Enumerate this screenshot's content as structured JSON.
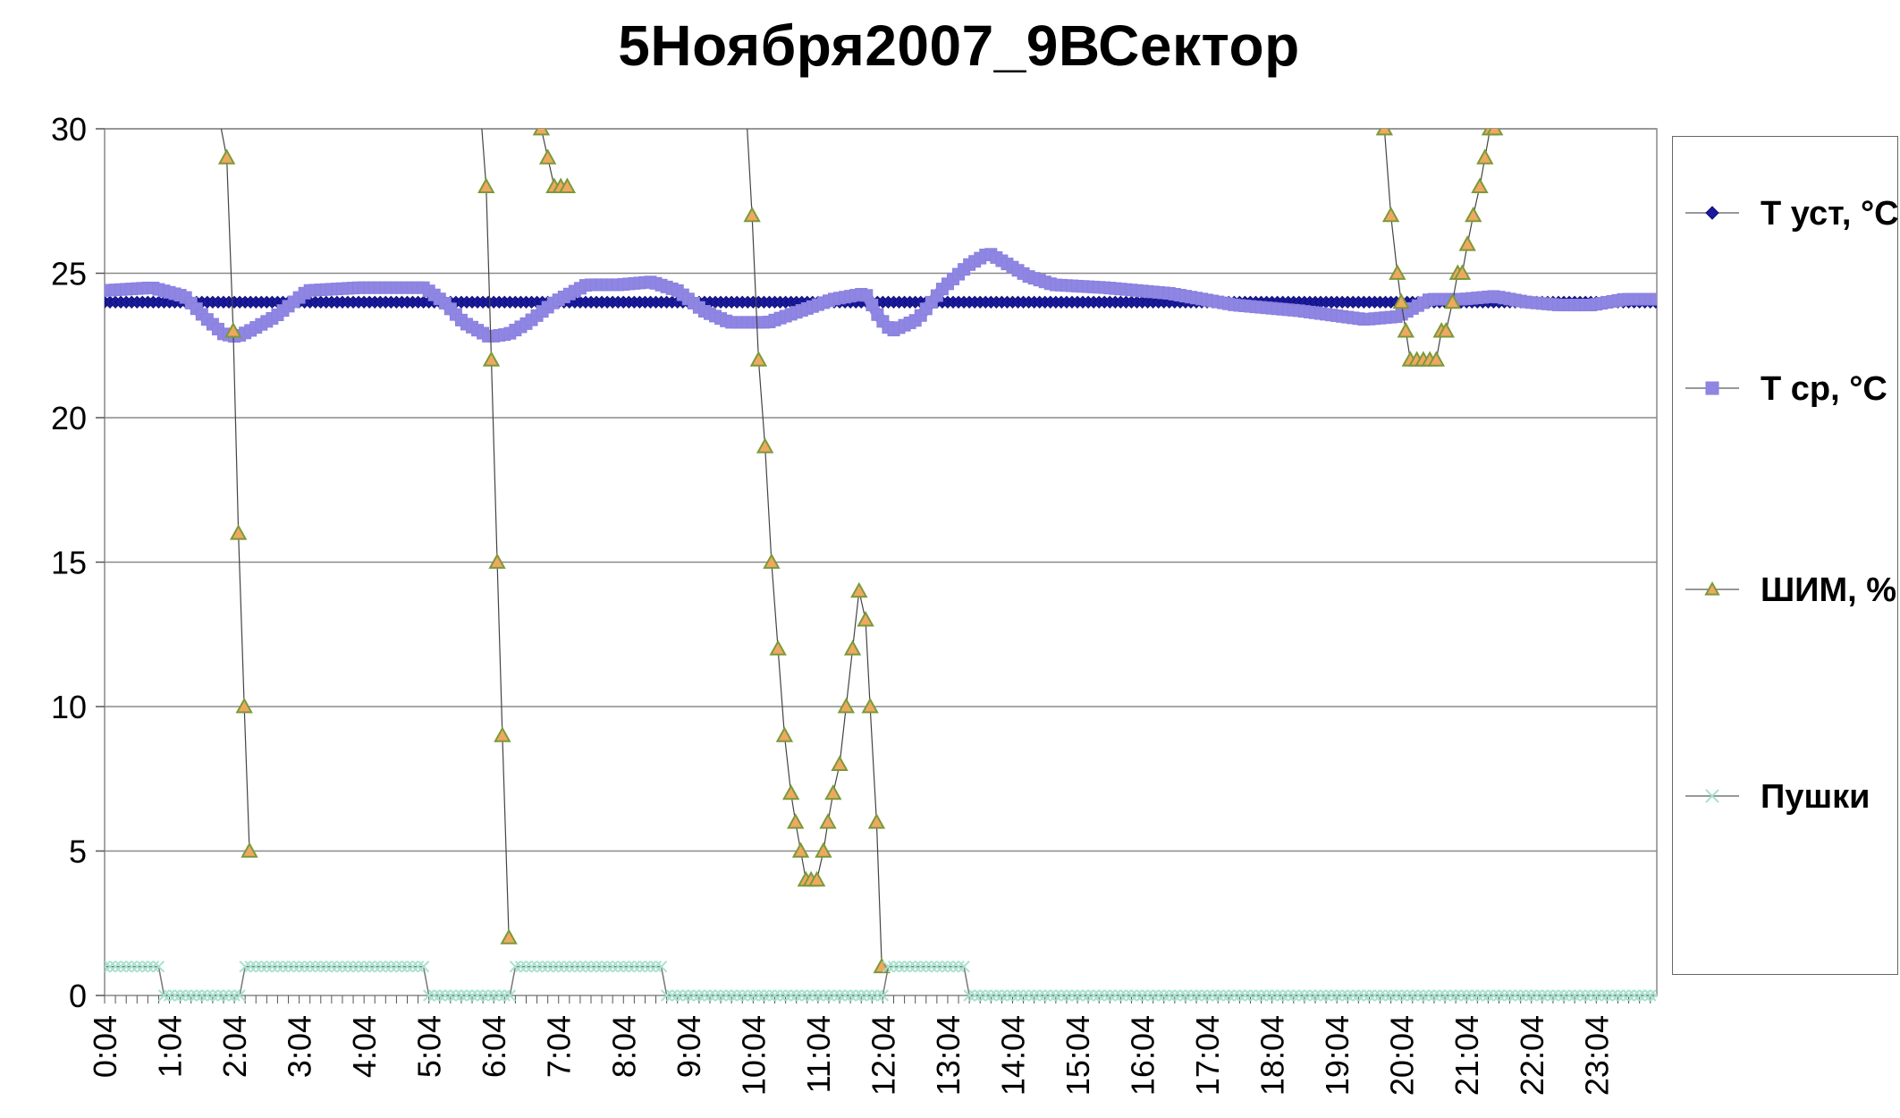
{
  "chart_data": {
    "type": "line",
    "title": "5Ноября2007_9ВСектор",
    "xlabel": "",
    "ylabel": "",
    "ylim": [
      0,
      30
    ],
    "yticks": [
      0,
      5,
      10,
      15,
      20,
      25,
      30
    ],
    "x_range_hours": [
      0.0667,
      24.0
    ],
    "xticks": [
      "0:04",
      "1:04",
      "2:04",
      "3:04",
      "4:04",
      "5:04",
      "6:04",
      "7:04",
      "8:04",
      "9:04",
      "10:04",
      "11:04",
      "12:04",
      "13:04",
      "14:04",
      "15:04",
      "16:04",
      "17:04",
      "18:04",
      "19:04",
      "20:04",
      "21:04",
      "22:04",
      "23:04"
    ],
    "grid": "horizontal",
    "legend_position": "right",
    "series": [
      {
        "name": "Т уст, °С",
        "color": "#1a1aa0",
        "marker": "diamond",
        "x_hours": [
          0.0667,
          24.0
        ],
        "y": [
          24,
          24
        ]
      },
      {
        "name": "Т ср, °С",
        "color": "#8f86e3",
        "marker": "square",
        "x_hours": [
          0.0667,
          0.8,
          1.3,
          1.6,
          1.9,
          2.1,
          2.3,
          2.7,
          3.2,
          4.0,
          5.0,
          5.3,
          5.6,
          6.0,
          6.3,
          6.6,
          7.0,
          7.5,
          8.0,
          8.5,
          8.9,
          9.3,
          9.7,
          10.3,
          10.8,
          11.3,
          11.8,
          12.0,
          12.2,
          12.6,
          13.0,
          13.4,
          13.7,
          14.0,
          14.3,
          14.7,
          15.5,
          16.5,
          17.5,
          18.5,
          19.5,
          20.0,
          20.5,
          21.0,
          21.5,
          22.0,
          22.5,
          23.0,
          23.5,
          24.0
        ],
        "y": [
          24.4,
          24.5,
          24.2,
          23.5,
          22.9,
          22.8,
          23.0,
          23.5,
          24.4,
          24.5,
          24.5,
          24.0,
          23.3,
          22.8,
          22.9,
          23.3,
          24.0,
          24.6,
          24.6,
          24.7,
          24.4,
          23.7,
          23.3,
          23.3,
          23.7,
          24.1,
          24.3,
          23.5,
          23.0,
          23.4,
          24.5,
          25.3,
          25.7,
          25.3,
          24.9,
          24.6,
          24.5,
          24.3,
          23.9,
          23.7,
          23.4,
          23.5,
          24.1,
          24.1,
          24.2,
          24.0,
          23.9,
          23.9,
          24.1,
          24.1
        ]
      },
      {
        "name": "ШИМ, %",
        "color": "#f0a860",
        "marker": "triangle",
        "x_hours": [
          1.78,
          1.95,
          2.05,
          2.13,
          2.22,
          2.3,
          5.85,
          5.95,
          6.03,
          6.12,
          6.2,
          6.3,
          6.37,
          6.7,
          6.8,
          6.9,
          7.0,
          7.1,
          7.2,
          9.95,
          10.05,
          10.15,
          10.25,
          10.35,
          10.45,
          10.55,
          10.65,
          10.72,
          10.8,
          10.88,
          10.96,
          11.05,
          11.15,
          11.22,
          11.3,
          11.4,
          11.5,
          11.6,
          11.7,
          11.8,
          11.87,
          11.97,
          12.05,
          19.8,
          19.9,
          20.0,
          20.06,
          20.13,
          20.2,
          20.3,
          20.4,
          20.5,
          20.6,
          20.68,
          20.75,
          20.85,
          20.93,
          21.0,
          21.08,
          21.17,
          21.27,
          21.35,
          21.43,
          21.5,
          21.57
        ],
        "y": [
          31,
          29,
          23,
          16,
          10,
          5,
          31,
          28,
          22,
          15,
          9,
          2,
          31,
          31,
          30,
          29,
          28,
          28,
          28,
          31,
          27,
          22,
          19,
          15,
          12,
          9,
          7,
          6,
          5,
          4,
          4,
          4,
          5,
          6,
          7,
          8,
          10,
          12,
          14,
          13,
          10,
          6,
          1,
          30,
          27,
          25,
          24,
          23,
          22,
          22,
          22,
          22,
          22,
          23,
          23,
          24,
          25,
          25,
          26,
          27,
          28,
          29,
          30,
          30,
          31
        ],
        "breaks_after_index": [
          5,
          11,
          18,
          42
        ]
      },
      {
        "name": "Пушки",
        "color": "#a8e2cf",
        "marker": "x",
        "x_hours": [
          0.0667,
          0.95,
          1.0,
          2.2,
          2.25,
          5.0,
          5.05,
          6.3,
          6.35,
          8.65,
          8.7,
          12.05,
          12.1,
          13.35,
          13.4,
          24.0
        ],
        "y": [
          1,
          1,
          0,
          0,
          1,
          1,
          0,
          0,
          1,
          1,
          0,
          0,
          1,
          1,
          0,
          0
        ]
      }
    ]
  }
}
